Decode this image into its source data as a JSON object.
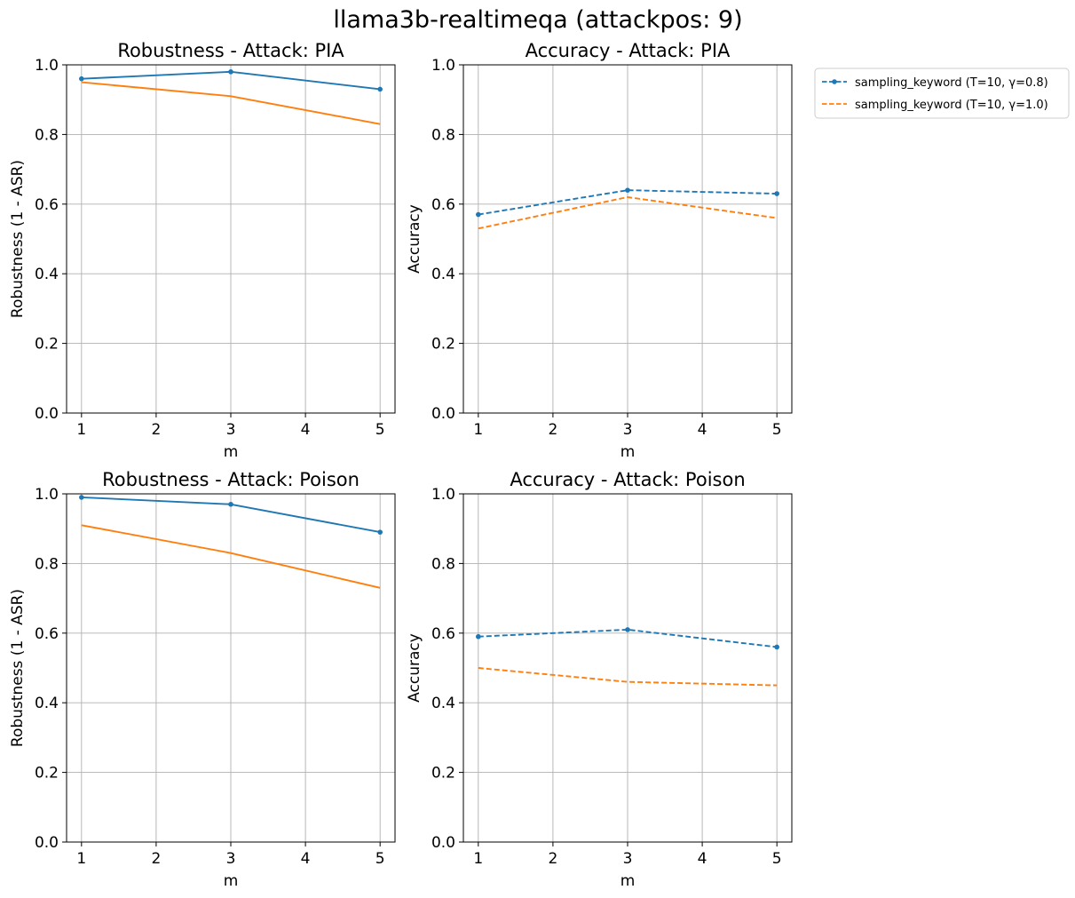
{
  "figure": {
    "suptitle": "llama3b-realtimeqa (attackpos: 9)",
    "legend": {
      "placement": "outside-right",
      "entries": [
        {
          "label": "sampling_keyword (T=10, γ=0.8)",
          "color": "#1f77b4",
          "style": "dashed",
          "marker": "dot"
        },
        {
          "label": "sampling_keyword (T=10, γ=1.0)",
          "color": "#ff7f0e",
          "style": "dashed",
          "marker": "none"
        }
      ]
    }
  },
  "chart_data": [
    {
      "type": "line",
      "title": "Robustness - Attack: PIA",
      "xlabel": "m",
      "ylabel": "Robustness (1 - ASR)",
      "x": [
        1,
        3,
        5
      ],
      "xticks": [
        "1",
        "2",
        "3",
        "4",
        "5"
      ],
      "yticks": [
        "0.0",
        "0.2",
        "0.4",
        "0.6",
        "0.8",
        "1.0"
      ],
      "xlim": [
        0.8,
        5.2
      ],
      "ylim": [
        0,
        1
      ],
      "grid": true,
      "series": [
        {
          "values": [
            0.96,
            0.98,
            0.93
          ],
          "color": "#1f77b4",
          "style": "solid",
          "marker": true
        },
        {
          "values": [
            0.95,
            0.91,
            0.83
          ],
          "color": "#ff7f0e",
          "style": "solid",
          "marker": false
        }
      ]
    },
    {
      "type": "line",
      "title": "Accuracy - Attack: PIA",
      "xlabel": "m",
      "ylabel": "Accuracy",
      "x": [
        1,
        3,
        5
      ],
      "xticks": [
        "1",
        "2",
        "3",
        "4",
        "5"
      ],
      "yticks": [
        "0.0",
        "0.2",
        "0.4",
        "0.6",
        "0.8",
        "1.0"
      ],
      "xlim": [
        0.8,
        5.2
      ],
      "ylim": [
        0,
        1
      ],
      "grid": true,
      "series": [
        {
          "name": "sampling_keyword (T=10, γ=0.8)",
          "values": [
            0.57,
            0.64,
            0.63
          ],
          "color": "#1f77b4",
          "style": "dashed",
          "marker": true
        },
        {
          "name": "sampling_keyword (T=10, γ=1.0)",
          "values": [
            0.53,
            0.62,
            0.56
          ],
          "color": "#ff7f0e",
          "style": "dashed",
          "marker": false
        }
      ]
    },
    {
      "type": "line",
      "title": "Robustness - Attack: Poison",
      "xlabel": "m",
      "ylabel": "Robustness (1 - ASR)",
      "x": [
        1,
        3,
        5
      ],
      "xticks": [
        "1",
        "2",
        "3",
        "4",
        "5"
      ],
      "yticks": [
        "0.0",
        "0.2",
        "0.4",
        "0.6",
        "0.8",
        "1.0"
      ],
      "xlim": [
        0.8,
        5.2
      ],
      "ylim": [
        0,
        1
      ],
      "grid": true,
      "series": [
        {
          "values": [
            0.99,
            0.97,
            0.89
          ],
          "color": "#1f77b4",
          "style": "solid",
          "marker": true
        },
        {
          "values": [
            0.91,
            0.83,
            0.73
          ],
          "color": "#ff7f0e",
          "style": "solid",
          "marker": false
        }
      ]
    },
    {
      "type": "line",
      "title": "Accuracy - Attack: Poison",
      "xlabel": "m",
      "ylabel": "Accuracy",
      "x": [
        1,
        3,
        5
      ],
      "xticks": [
        "1",
        "2",
        "3",
        "4",
        "5"
      ],
      "yticks": [
        "0.0",
        "0.2",
        "0.4",
        "0.6",
        "0.8",
        "1.0"
      ],
      "xlim": [
        0.8,
        5.2
      ],
      "ylim": [
        0,
        1
      ],
      "grid": true,
      "series": [
        {
          "name": "sampling_keyword (T=10, γ=0.8)",
          "values": [
            0.59,
            0.61,
            0.56
          ],
          "color": "#1f77b4",
          "style": "dashed",
          "marker": true
        },
        {
          "name": "sampling_keyword (T=10, γ=1.0)",
          "values": [
            0.5,
            0.46,
            0.45
          ],
          "color": "#ff7f0e",
          "style": "dashed",
          "marker": false
        }
      ]
    }
  ]
}
